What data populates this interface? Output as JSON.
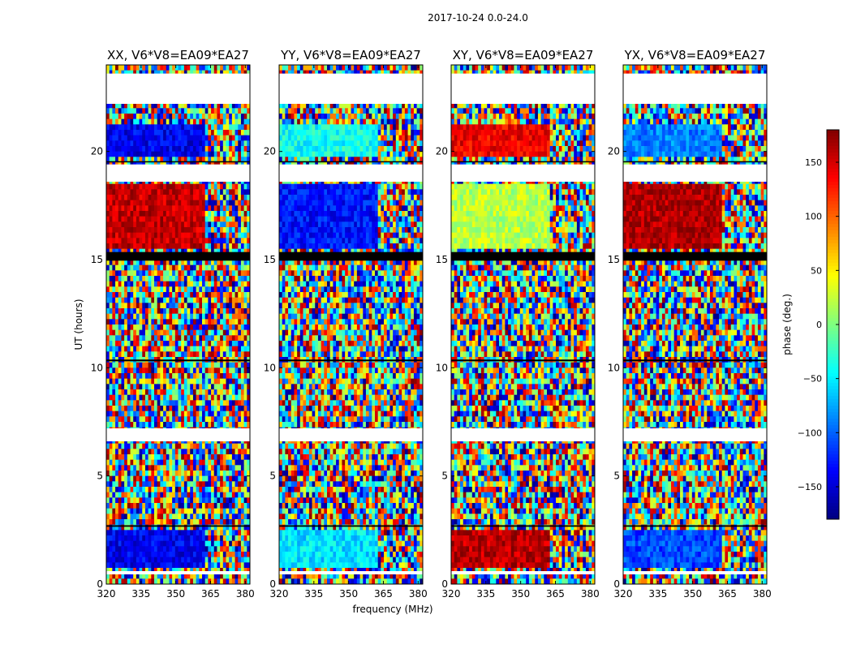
{
  "chart_data": {
    "type": "heatmap",
    "suptitle": "2017-10-24 0.0-24.0",
    "xlabel": "frequency (MHz)",
    "ylabel": "UT (hours)",
    "xlim": [
      320,
      382
    ],
    "ylim": [
      0,
      24
    ],
    "x_ticks": [
      320,
      335,
      350,
      365,
      380
    ],
    "x_tick_labels": [
      "320",
      "335",
      "350",
      "365",
      "380"
    ],
    "y_ticks": [
      0,
      5,
      10,
      15,
      20
    ],
    "y_tick_labels": [
      "0",
      "5",
      "10",
      "15",
      "20"
    ],
    "colorbar": {
      "label": "phase (deg.)",
      "range": [
        -180,
        180
      ],
      "ticks": [
        150,
        100,
        50,
        0,
        -50,
        -100,
        -150
      ],
      "tick_labels": [
        "150",
        "100",
        "50",
        "0",
        "−50",
        "−100",
        "−150"
      ],
      "colormap": "jet",
      "colors": [
        "#00007f",
        "#0000ff",
        "#007fff",
        "#00ffff",
        "#7fff7f",
        "#ffff00",
        "#ff7f00",
        "#ff0000",
        "#7f0000"
      ]
    },
    "panels": [
      {
        "title": "XX, V6*V8=EA09*EA27",
        "polarization": "XX"
      },
      {
        "title": "YY, V6*V8=EA09*EA27",
        "polarization": "YY"
      },
      {
        "title": "XY, V6*V8=EA09*EA27",
        "polarization": "XY"
      },
      {
        "title": "YX, V6*V8=EA09*EA27",
        "polarization": "YX"
      }
    ],
    "blank_time_ranges_hours": [
      [
        22.2,
        23.6
      ],
      [
        18.6,
        19.4
      ],
      [
        6.6,
        7.2
      ],
      [
        0.45,
        0.6
      ]
    ],
    "black_time_ranges_hours": [
      [
        14.95,
        15.35
      ],
      [
        19.5,
        19.55
      ],
      [
        10.3,
        10.38
      ],
      [
        2.65,
        2.72
      ]
    ],
    "coherent_low_freq_regions": [
      {
        "t_range": [
          19.8,
          21.2
        ],
        "f_max": 363,
        "phase": {
          "XX": -140,
          "YY": -40,
          "XY": 140,
          "YX": -90
        }
      },
      {
        "t_range": [
          15.6,
          18.4
        ],
        "f_max": 362,
        "phase": {
          "XX": 155,
          "YY": -130,
          "XY": 20,
          "YX": 165
        }
      },
      {
        "t_range": [
          0.8,
          2.5
        ],
        "f_max": 363,
        "phase": {
          "XX": -140,
          "YY": -55,
          "XY": 160,
          "YX": -110
        }
      }
    ]
  }
}
